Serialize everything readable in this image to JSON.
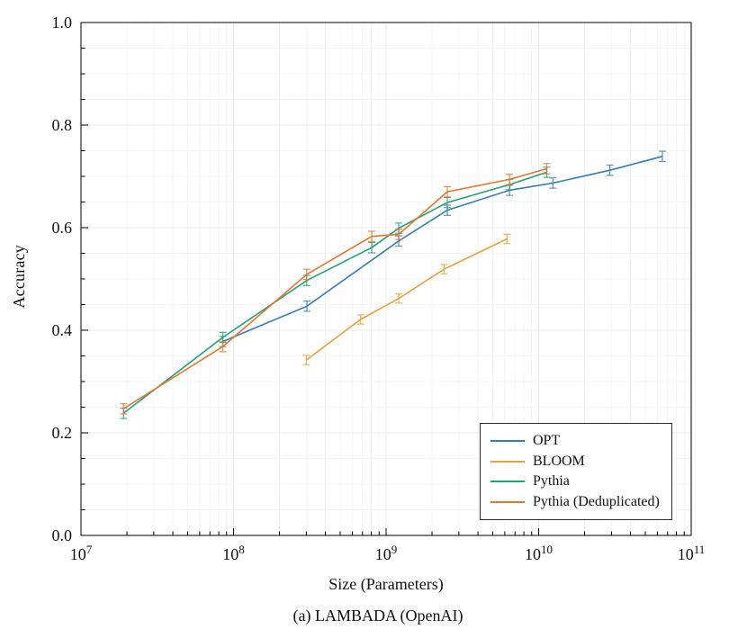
{
  "figure": {
    "ylabel": "Accuracy",
    "xlabel": "Size (Parameters)",
    "caption": "(a) LAMBADA (OpenAI)"
  },
  "chart_data": {
    "type": "line",
    "title": "LAMBADA (OpenAI)",
    "xlabel": "Size (Parameters)",
    "ylabel": "Accuracy",
    "x_scale": "log10",
    "xlim": [
      10000000,
      100000000000
    ],
    "ylim": [
      0.0,
      1.0
    ],
    "x_tick_exponents": [
      7,
      8,
      9,
      10,
      11
    ],
    "x_tick_base": "10",
    "y_ticks": [
      0.0,
      0.2,
      0.4,
      0.6,
      0.8,
      1.0
    ],
    "y_minor_step": 0.05,
    "grid": true,
    "error_bars": true,
    "legend": {
      "position": "lower right",
      "entries": [
        "OPT",
        "BLOOM",
        "Pythia",
        "Pythia (Deduplicated)"
      ]
    },
    "series": [
      {
        "name": "OPT",
        "color": "#377eb8",
        "x": [
          85000000.0,
          303000000.0,
          1210000000.0,
          2520000000.0,
          6440000000.0,
          12400000000.0,
          29300000000.0,
          64700000000.0
        ],
        "y": [
          0.378,
          0.447,
          0.574,
          0.634,
          0.673,
          0.687,
          0.712,
          0.739
        ],
        "yerr": 0.01
      },
      {
        "name": "BLOOM",
        "color": "#e2a33c",
        "x": [
          300000000.0,
          680000000.0,
          1210000000.0,
          2400000000.0,
          6200000000.0
        ],
        "y": [
          0.342,
          0.421,
          0.462,
          0.519,
          0.578
        ],
        "yerr": 0.009
      },
      {
        "name": "Pythia",
        "color": "#21a179",
        "x": [
          19000000.0,
          85000000.0,
          302000000.0,
          805000000.0,
          1210000000.0,
          2520000000.0,
          6440000000.0,
          11300000000.0
        ],
        "y": [
          0.238,
          0.386,
          0.497,
          0.561,
          0.599,
          0.649,
          0.684,
          0.708
        ],
        "yerr": 0.01
      },
      {
        "name": "Pythia (Deduplicated)",
        "color": "#e4762e",
        "x": [
          19000000.0,
          85000000.0,
          302000000.0,
          805000000.0,
          1210000000.0,
          2520000000.0,
          6440000000.0,
          11300000000.0
        ],
        "y": [
          0.247,
          0.368,
          0.509,
          0.583,
          0.587,
          0.67,
          0.694,
          0.715
        ],
        "yerr": 0.01
      }
    ]
  }
}
